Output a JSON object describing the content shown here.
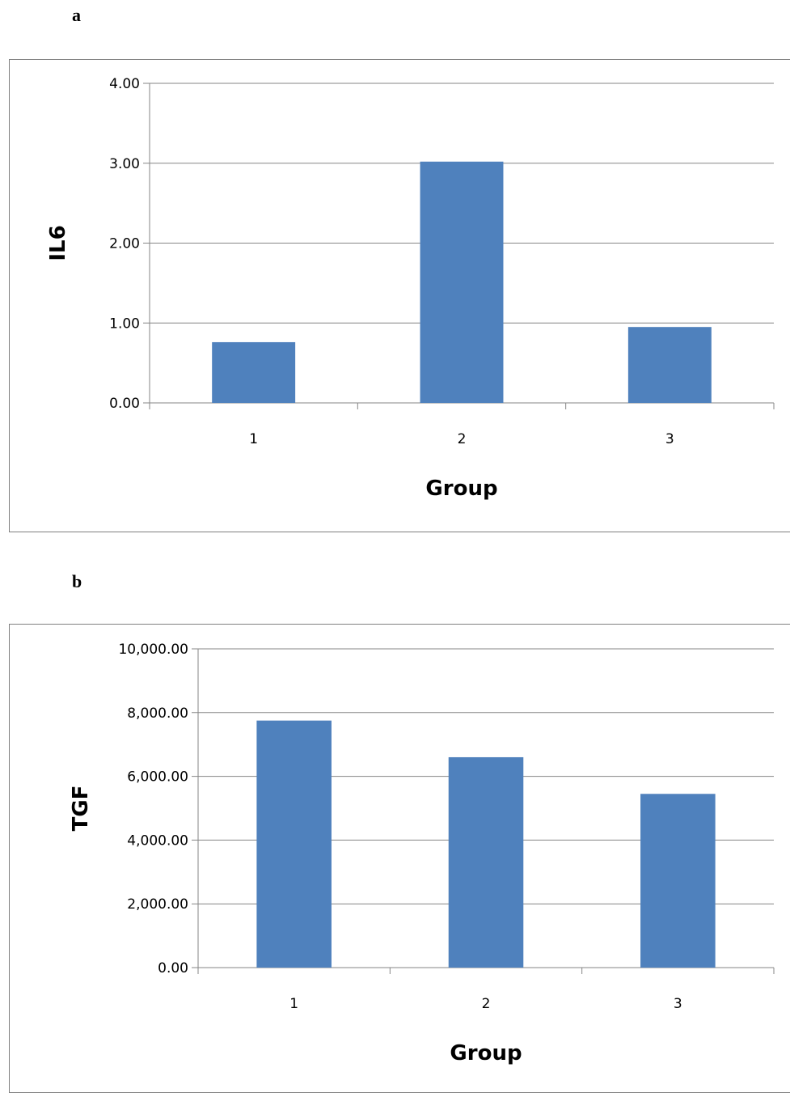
{
  "panels": {
    "a": {
      "letter": "a"
    },
    "b": {
      "letter": "b"
    }
  },
  "colors": {
    "bar": "#4f81bd",
    "grid": "#868686",
    "frame": "#7f7f7f"
  },
  "chart_data": [
    {
      "type": "bar",
      "categories": [
        "1",
        "2",
        "3"
      ],
      "values": [
        0.76,
        3.02,
        0.95
      ],
      "title": "",
      "xlabel": "Group",
      "ylabel": "IL6",
      "ylim": [
        0,
        4
      ],
      "yticks": [
        "0.00",
        "1.00",
        "2.00",
        "3.00",
        "4.00"
      ],
      "grid": true
    },
    {
      "type": "bar",
      "categories": [
        "1",
        "2",
        "3"
      ],
      "values": [
        7750,
        6600,
        5450
      ],
      "title": "",
      "xlabel": "Group",
      "ylabel": "TGF",
      "ylim": [
        0,
        10000
      ],
      "yticks": [
        "0.00",
        "2,000.00",
        "4,000.00",
        "6,000.00",
        "8,000.00",
        "10,000.00"
      ],
      "grid": true
    }
  ]
}
